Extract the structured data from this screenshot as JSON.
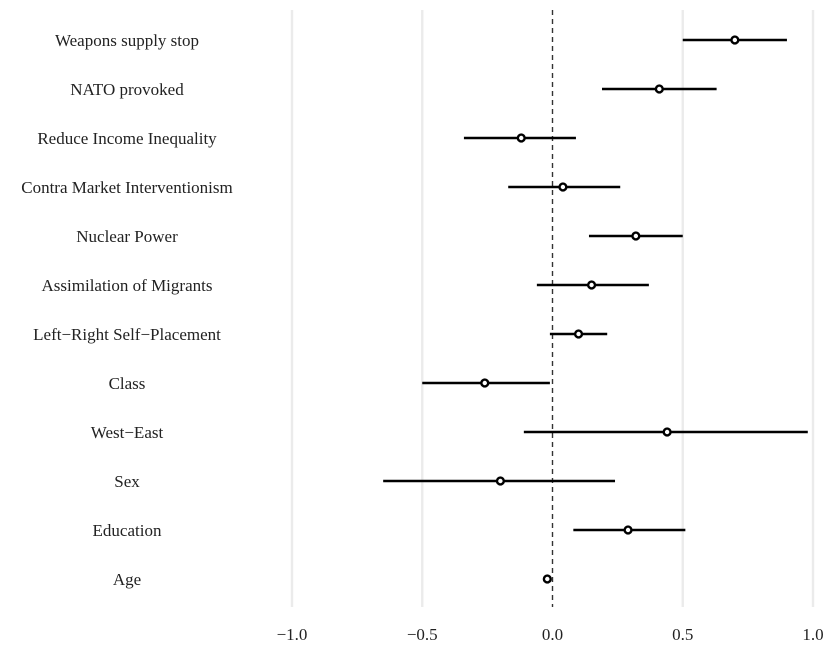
{
  "chart_data": {
    "type": "scatter",
    "title": "",
    "xlabel": "",
    "ylabel": "",
    "xlim": [
      -1.0,
      1.0
    ],
    "grid": true,
    "reference_line": 0,
    "x_ticks": [
      -1.0,
      -0.5,
      0.0,
      0.5,
      1.0
    ],
    "x_tick_labels": [
      "−1.0",
      "−0.5",
      "0.0",
      "0.5",
      "1.0"
    ],
    "categories": [
      "Weapons supply stop",
      "NATO provoked",
      "Reduce Income Inequality",
      "Contra Market Interventionism",
      "Nuclear Power",
      "Assimilation of Migrants",
      "Left−Right Self−Placement",
      "Class",
      "West−East",
      "Sex",
      "Education",
      "Age"
    ],
    "estimates": [
      {
        "value": 0.7,
        "lower": 0.5,
        "upper": 0.9
      },
      {
        "value": 0.41,
        "lower": 0.19,
        "upper": 0.63
      },
      {
        "value": -0.12,
        "lower": -0.34,
        "upper": 0.09
      },
      {
        "value": 0.04,
        "lower": -0.17,
        "upper": 0.26
      },
      {
        "value": 0.32,
        "lower": 0.14,
        "upper": 0.5
      },
      {
        "value": 0.15,
        "lower": -0.06,
        "upper": 0.37
      },
      {
        "value": 0.1,
        "lower": -0.01,
        "upper": 0.21
      },
      {
        "value": -0.26,
        "lower": -0.5,
        "upper": -0.01
      },
      {
        "value": 0.44,
        "lower": -0.11,
        "upper": 0.98
      },
      {
        "value": -0.2,
        "lower": -0.65,
        "upper": 0.24
      },
      {
        "value": 0.29,
        "lower": 0.08,
        "upper": 0.51
      },
      {
        "value": -0.02,
        "lower": -0.03,
        "upper": -0.01
      }
    ],
    "colors": {
      "point": "#000000",
      "interval": "#000000",
      "grid": "#ebebeb",
      "reference": "#333333"
    }
  }
}
